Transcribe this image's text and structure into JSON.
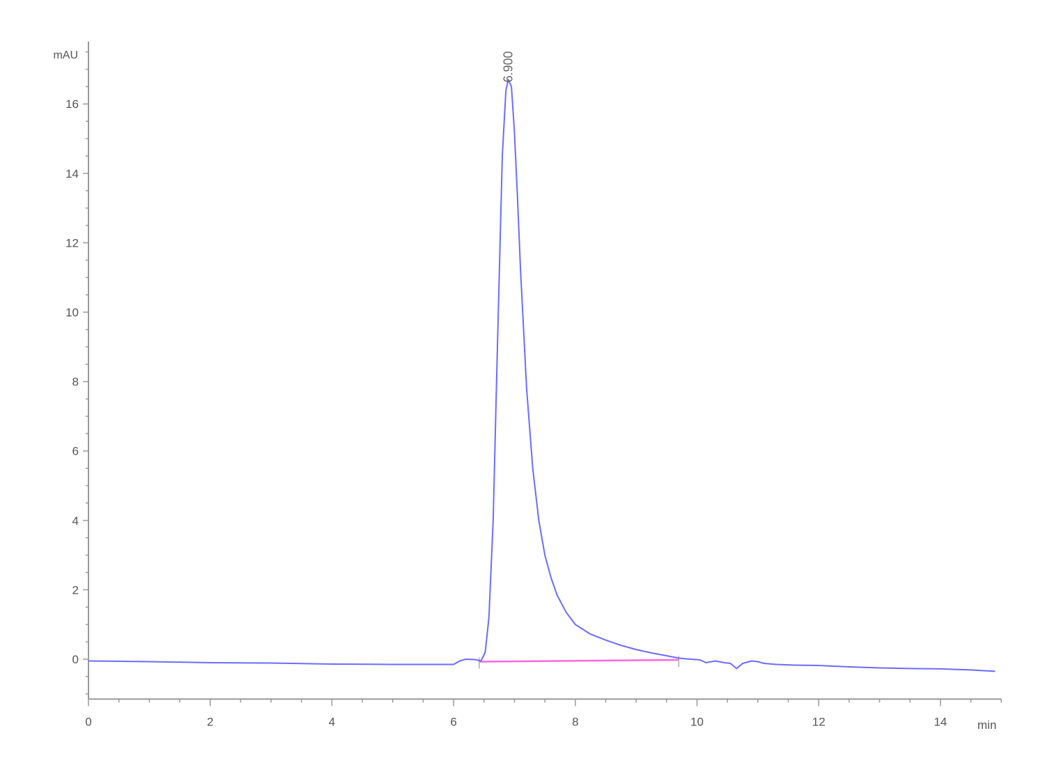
{
  "chart_data": {
    "type": "line",
    "title": "",
    "xlabel": "min",
    "ylabel": "mAU",
    "xlim": [
      0,
      15
    ],
    "ylim": [
      -1.15,
      17.8
    ],
    "x_ticks": [
      0,
      2,
      4,
      6,
      8,
      10,
      12,
      14
    ],
    "y_ticks": [
      0,
      2,
      4,
      6,
      8,
      10,
      12,
      14,
      16
    ],
    "grid": false,
    "colors": {
      "trace": "#6b6bff",
      "baseline": "#ff66e0",
      "axis": "#999999"
    },
    "series": [
      {
        "x": [
          0,
          1,
          2,
          3,
          4,
          5,
          6.0,
          6.1,
          6.2,
          6.35,
          6.45,
          6.52,
          6.58,
          6.65,
          6.72,
          6.8,
          6.86,
          6.9,
          6.95,
          7.0,
          7.05,
          7.1,
          7.2,
          7.3,
          7.4,
          7.5,
          7.6,
          7.7,
          7.85,
          8.0,
          8.25,
          8.5,
          8.75,
          9.0,
          9.25,
          9.5,
          9.7,
          9.9,
          10.05,
          10.15,
          10.3,
          10.45,
          10.55,
          10.65,
          10.75,
          10.9,
          11.0,
          11.1,
          11.3,
          11.6,
          12.0,
          12.5,
          13.0,
          13.5,
          14.0,
          14.5,
          14.9
        ],
        "y": [
          -0.05,
          -0.07,
          -0.1,
          -0.11,
          -0.14,
          -0.15,
          -0.15,
          -0.05,
          0.0,
          -0.01,
          -0.05,
          0.2,
          1.2,
          4.0,
          9.0,
          14.5,
          16.4,
          16.7,
          16.5,
          15.2,
          13.3,
          11.2,
          7.8,
          5.5,
          4.0,
          3.0,
          2.35,
          1.85,
          1.35,
          1.0,
          0.72,
          0.55,
          0.4,
          0.28,
          0.18,
          0.1,
          0.03,
          0.0,
          -0.02,
          -0.1,
          -0.05,
          -0.1,
          -0.12,
          -0.27,
          -0.12,
          -0.05,
          -0.07,
          -0.12,
          -0.15,
          -0.17,
          -0.18,
          -0.22,
          -0.25,
          -0.27,
          -0.28,
          -0.31,
          -0.35
        ]
      }
    ],
    "integration_baseline": {
      "x": [
        6.42,
        9.7
      ],
      "y": [
        -0.07,
        -0.02
      ]
    },
    "annotations": [
      {
        "text": "6.900",
        "x": 6.9,
        "y": 16.7
      }
    ]
  }
}
